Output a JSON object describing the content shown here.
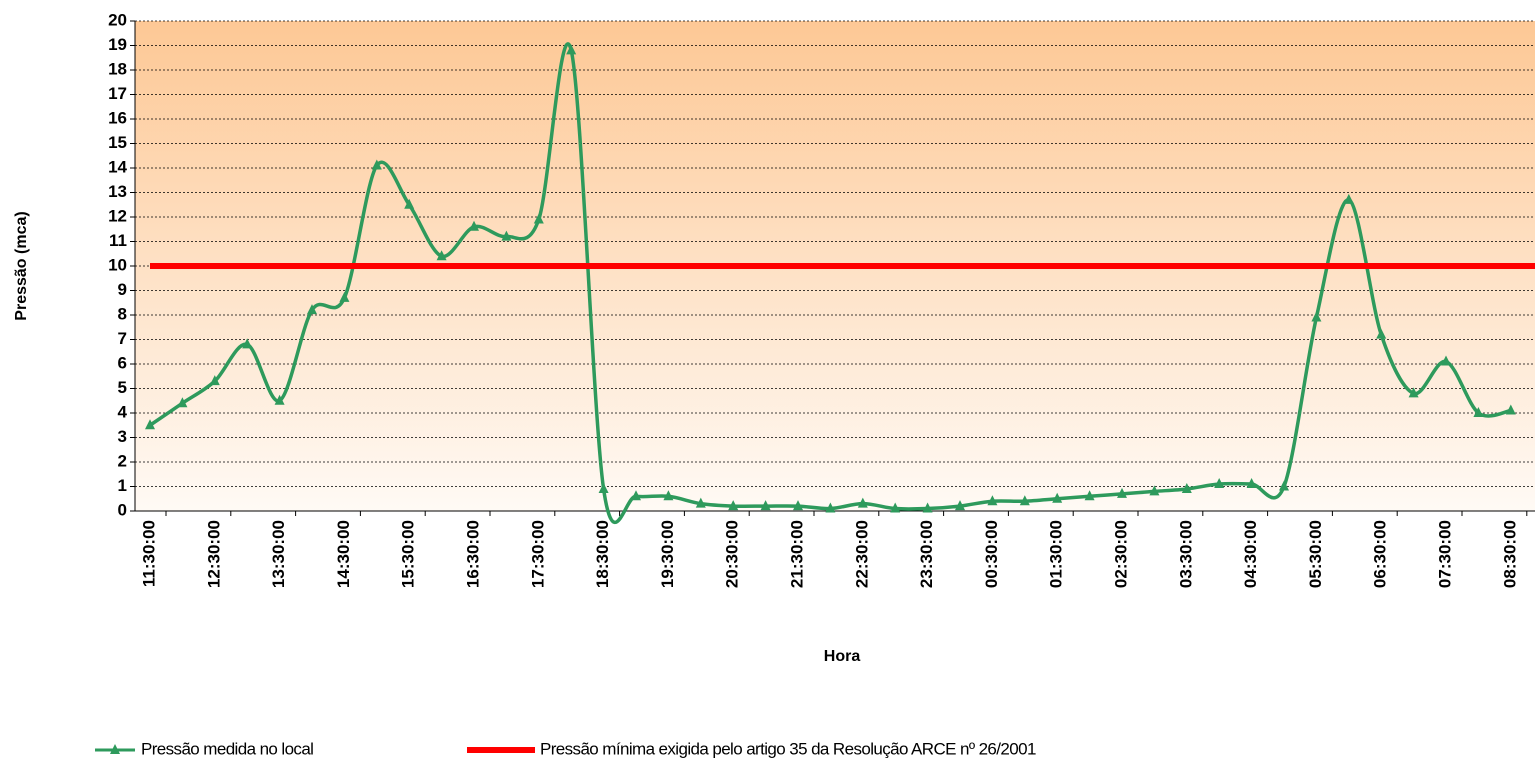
{
  "chart_data": {
    "type": "line",
    "x_label": "Hora",
    "y_label": "Pressão (mca)",
    "categories": [
      "11:30:00",
      null,
      "12:30:00",
      null,
      "13:30:00",
      null,
      "14:30:00",
      null,
      "15:30:00",
      null,
      "16:30:00",
      null,
      "17:30:00",
      null,
      "18:30:00",
      null,
      "19:30:00",
      null,
      "20:30:00",
      null,
      "21:30:00",
      null,
      "22:30:00",
      null,
      "23:30:00",
      null,
      "00:30:00",
      null,
      "01:30:00",
      null,
      "02:30:00",
      null,
      "03:30:00",
      null,
      "04:30:00",
      null,
      "05:30:00",
      null,
      "06:30:00",
      null,
      "07:30:00",
      null,
      "08:30:00"
    ],
    "series": [
      {
        "name": "Pressão medida no local",
        "color": "#2e9a5c",
        "marker": "triangle",
        "values": [
          3.5,
          4.4,
          5.3,
          6.8,
          4.5,
          8.2,
          8.7,
          14.1,
          12.5,
          10.4,
          11.6,
          11.2,
          11.9,
          18.8,
          0.9,
          0.6,
          0.6,
          0.3,
          0.2,
          0.2,
          0.2,
          0.1,
          0.3,
          0.1,
          0.1,
          0.2,
          0.4,
          0.4,
          0.5,
          0.6,
          0.7,
          0.8,
          0.9,
          1.1,
          1.1,
          1.0,
          7.9,
          12.7,
          7.2,
          4.8,
          6.1,
          4.0,
          4.1
        ]
      },
      {
        "name": "Pressão mínima exigida pelo artigo 35 da Resolução ARCE nº 26/2001",
        "color": "#ff0000",
        "values": [
          10,
          10,
          10,
          10,
          10,
          10,
          10,
          10,
          10,
          10,
          10,
          10,
          10,
          10,
          10,
          10,
          10,
          10,
          10,
          10,
          10,
          10,
          10,
          10,
          10,
          10,
          10,
          10,
          10,
          10,
          10,
          10,
          10,
          10,
          10,
          10,
          10,
          10,
          10,
          10,
          10,
          10,
          10
        ]
      }
    ],
    "ylim": [
      0,
      20
    ],
    "yticks": [
      0,
      1,
      2,
      3,
      4,
      5,
      6,
      7,
      8,
      9,
      10,
      11,
      12,
      13,
      14,
      15,
      16,
      17,
      18,
      19,
      20
    ],
    "grid": true,
    "legend": "bottom"
  }
}
